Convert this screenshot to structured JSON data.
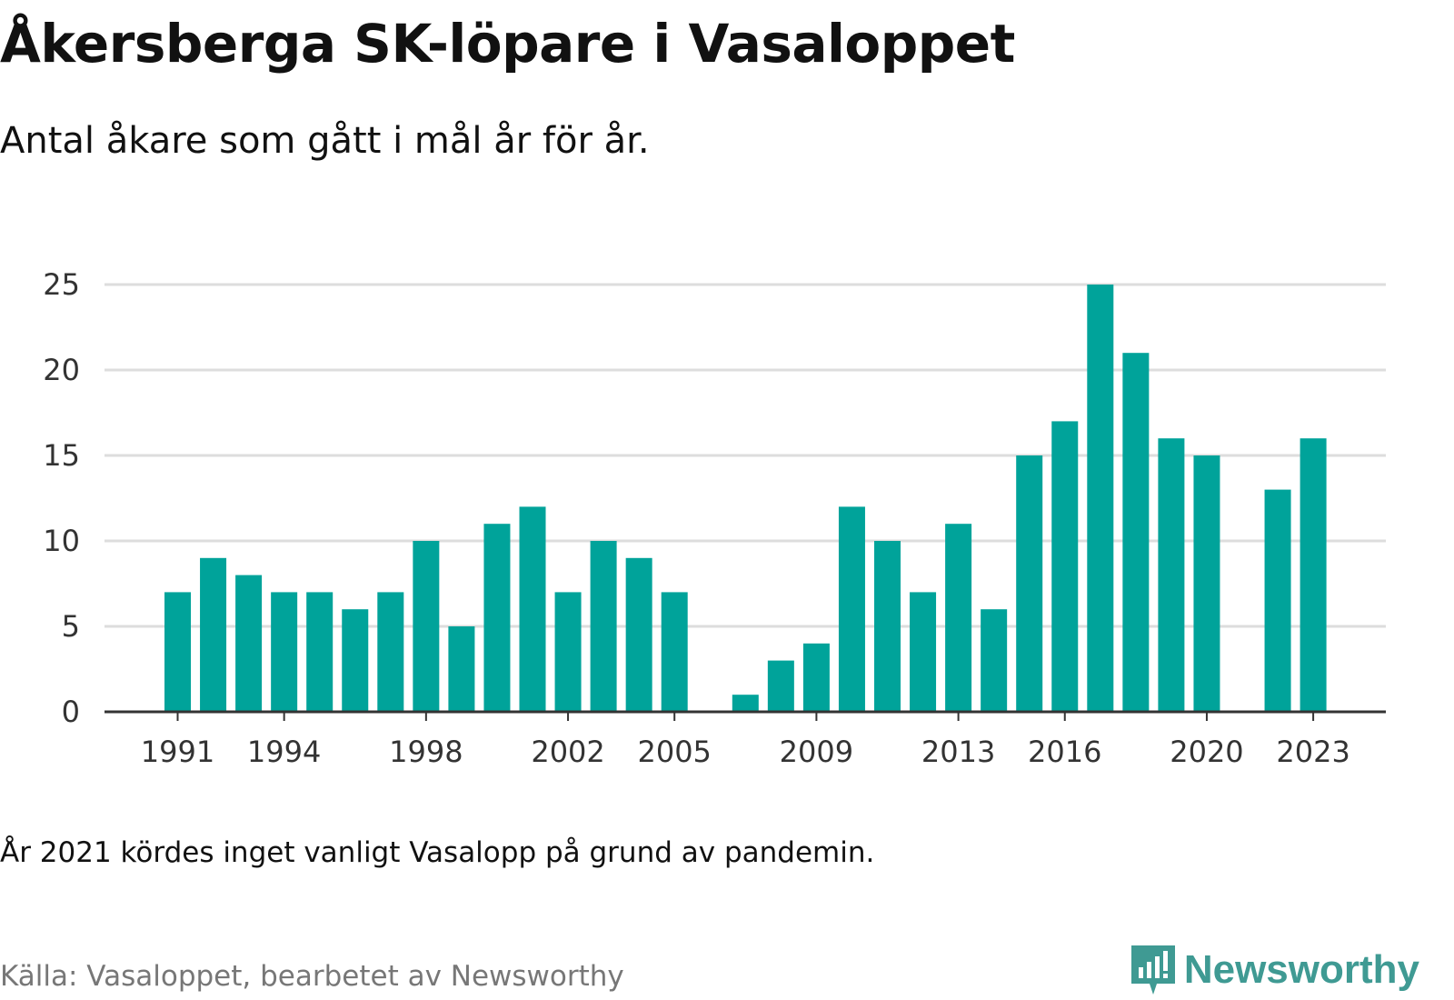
{
  "title": "Åkersberga SK-löpare i Vasaloppet",
  "subtitle": "Antal åkare som gått i mål år för år.",
  "note": "År 2021 kördes inget vanligt Vasalopp på grund av pandemin.",
  "source": "Källa: Vasaloppet, bearbetet av Newsworthy",
  "brand": "Newsworthy",
  "colors": {
    "bar": "#00a39a",
    "grid": "#dddddd",
    "axis": "#333333",
    "brand": "#3f9a93"
  },
  "chart_data": {
    "type": "bar",
    "x": [
      1991,
      1992,
      1993,
      1994,
      1995,
      1996,
      1997,
      1998,
      1999,
      2000,
      2001,
      2002,
      2003,
      2004,
      2005,
      2006,
      2007,
      2008,
      2009,
      2010,
      2011,
      2012,
      2013,
      2014,
      2015,
      2016,
      2017,
      2018,
      2019,
      2020,
      2021,
      2022,
      2023
    ],
    "values": [
      7,
      9,
      8,
      7,
      7,
      6,
      7,
      10,
      5,
      11,
      12,
      7,
      10,
      9,
      7,
      null,
      1,
      3,
      4,
      12,
      10,
      7,
      11,
      6,
      15,
      17,
      25,
      21,
      16,
      15,
      null,
      13,
      16
    ],
    "x_ticks": [
      "1991",
      "1994",
      "1998",
      "2002",
      "2005",
      "2009",
      "2013",
      "2016",
      "2020",
      "2023"
    ],
    "y_ticks": [
      "0",
      "5",
      "10",
      "15",
      "20",
      "25"
    ],
    "ylim": [
      0,
      25
    ],
    "grid": true,
    "legend": "none"
  }
}
